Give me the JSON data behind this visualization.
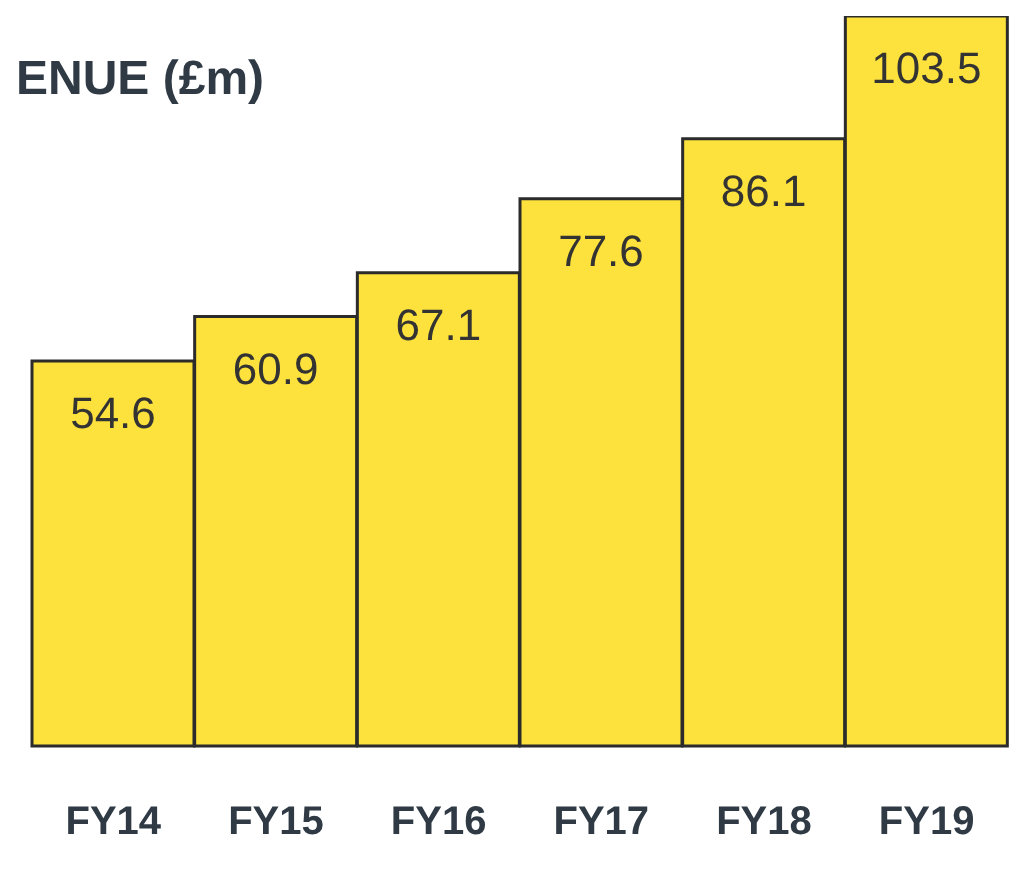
{
  "chart_data": {
    "type": "bar",
    "title": "ENUE (£m)",
    "categories": [
      "FY14",
      "FY15",
      "FY16",
      "FY17",
      "FY18",
      "FY19"
    ],
    "values": [
      54.6,
      60.9,
      67.1,
      77.6,
      86.1,
      103.5
    ],
    "color": "#fde23d",
    "data_labels": true,
    "grid": false,
    "legend": false
  }
}
